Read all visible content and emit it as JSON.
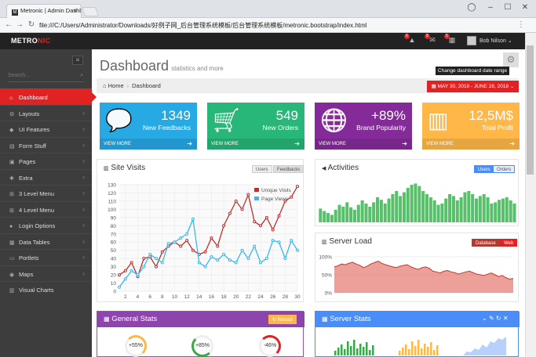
{
  "browser": {
    "tab_title": "Metronic | Admin Dashb",
    "url": "file:///C:/Users/Administrator/Downloads/好例子网_后台管理系统模板/后台管理系统模板/metronic.bootstrap/index.html"
  },
  "header": {
    "logo_main": "METRO",
    "logo_accent": "NIC",
    "badges": [
      "6",
      "8",
      "5"
    ],
    "user_name": "Bob Nilson"
  },
  "sidebar": {
    "search_placeholder": "Search...",
    "items": [
      {
        "label": "Dashboard",
        "icon": "home-icon",
        "active": true
      },
      {
        "label": "Layouts",
        "icon": "cogs-icon"
      },
      {
        "label": "UI Features",
        "icon": "bookmark-icon"
      },
      {
        "label": "Form Stuff",
        "icon": "table-icon"
      },
      {
        "label": "Pages",
        "icon": "briefcase-icon"
      },
      {
        "label": "Extra",
        "icon": "gift-icon"
      },
      {
        "label": "3 Level Menu",
        "icon": "sitemap-icon"
      },
      {
        "label": "4 Level Menu",
        "icon": "sitemap-icon"
      },
      {
        "label": "Login Options",
        "icon": "user-icon"
      },
      {
        "label": "Data Tables",
        "icon": "th-icon"
      },
      {
        "label": "Portlets",
        "icon": "file-icon"
      },
      {
        "label": "Maps",
        "icon": "map-marker-icon"
      },
      {
        "label": "Visual Charts",
        "icon": "bar-chart-icon"
      }
    ]
  },
  "page": {
    "title": "Dashboard",
    "subtitle": "statistics and more",
    "tooltip": "Change dashboard date range",
    "breadcrumb_home": "Home",
    "breadcrumb_current": "Dashboard",
    "date_range": "MAY 30, 2018 - JUNE 28, 2018"
  },
  "tiles": [
    {
      "value": "1349",
      "label": "New Feedbacks",
      "more": "VIEW MORE",
      "color": "#27a9e3",
      "icon": "comments-icon"
    },
    {
      "value": "549",
      "label": "New Orders",
      "more": "VIEW MORE",
      "color": "#28b779",
      "icon": "shopping-cart-icon"
    },
    {
      "value": "+89%",
      "label": "Brand Popularity",
      "more": "VIEW MORE",
      "color": "#852b99",
      "icon": "globe-icon"
    },
    {
      "value": "12,5M$",
      "label": "Total Profit",
      "more": "VIEW MORE",
      "color": "#ffb848",
      "icon": "bar-chart-icon"
    }
  ],
  "site_visits": {
    "title": "Site Visits",
    "btn_users": "Users",
    "btn_feedbacks": "Feedbacks"
  },
  "activities": {
    "title": "Activities",
    "btn_users": "Users",
    "btn_orders": "Orders"
  },
  "server_load": {
    "title": "Server Load",
    "btn_database": "Database",
    "btn_web": "Web"
  },
  "general_stats": {
    "title": "General Stats",
    "reload": "Reload",
    "pies": [
      "+55%",
      "+85%",
      "-46%"
    ]
  },
  "server_stats": {
    "title": "Server Stats"
  },
  "chart_data": [
    {
      "type": "line",
      "title": "Site Visits",
      "x": [
        1,
        2,
        3,
        4,
        5,
        6,
        7,
        8,
        9,
        10,
        11,
        12,
        13,
        14,
        15,
        16,
        17,
        18,
        19,
        20,
        21,
        22,
        23,
        24,
        25,
        26,
        27,
        28,
        29,
        30
      ],
      "xticks": [
        2,
        4,
        6,
        8,
        10,
        12,
        14,
        16,
        18,
        20,
        22,
        24,
        26,
        28,
        30
      ],
      "yticks": [
        0,
        10,
        20,
        30,
        40,
        50,
        60,
        70,
        80,
        90,
        100,
        110,
        120,
        130
      ],
      "ylim": [
        0,
        130
      ],
      "xlim": [
        1,
        30
      ],
      "grid": true,
      "legend": "top-right",
      "series": [
        {
          "name": "Unique Visits",
          "color": "#b8312f",
          "values": [
            20,
            25,
            35,
            18,
            40,
            42,
            30,
            48,
            55,
            60,
            55,
            62,
            50,
            45,
            48,
            65,
            55,
            80,
            95,
            110,
            100,
            118,
            85,
            80,
            90,
            75,
            92,
            110,
            115,
            128
          ]
        },
        {
          "name": "Page Views",
          "color": "#37b7f3",
          "values": [
            5,
            15,
            25,
            20,
            30,
            45,
            40,
            35,
            58,
            60,
            65,
            70,
            88,
            35,
            30,
            42,
            38,
            45,
            38,
            35,
            50,
            40,
            55,
            35,
            40,
            62,
            60,
            40,
            62,
            50
          ]
        }
      ]
    },
    {
      "type": "bar",
      "title": "Activities",
      "values": [
        22,
        18,
        15,
        12,
        20,
        28,
        25,
        32,
        24,
        20,
        28,
        35,
        30,
        25,
        32,
        40,
        36,
        30,
        38,
        45,
        50,
        42,
        48,
        55,
        60,
        62,
        58,
        50,
        45,
        40,
        35,
        28,
        30,
        38,
        45,
        42,
        35,
        40,
        48,
        50,
        45,
        38,
        42,
        45,
        40,
        30,
        32,
        36,
        38,
        40,
        35,
        30
      ],
      "ylim": [
        0,
        70
      ],
      "color": "#58c06a"
    },
    {
      "type": "area",
      "title": "Server Load",
      "yticks": [
        "0%",
        "50%",
        "100%"
      ],
      "ylim": [
        0,
        100
      ],
      "values": [
        72,
        75,
        80,
        78,
        82,
        85,
        80,
        76,
        70,
        74,
        80,
        84,
        88,
        82,
        78,
        75,
        72,
        70,
        74,
        76,
        78,
        72,
        68,
        65,
        70,
        72,
        68,
        60,
        58,
        55,
        60,
        62,
        58,
        56,
        52,
        55,
        58,
        60,
        56,
        52,
        50,
        48,
        52,
        55,
        50,
        45,
        48,
        42,
        38,
        40
      ],
      "color": "#e06155"
    }
  ]
}
